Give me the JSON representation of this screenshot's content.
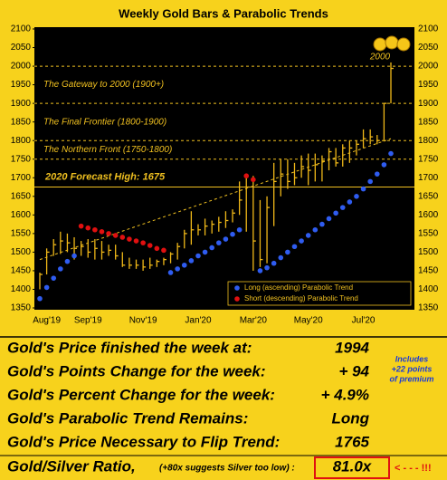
{
  "chart_data": {
    "type": "ohlc",
    "title": "Weekly Gold Bars & Parabolic Trends",
    "categories": [
      null,
      "Aug'19",
      null,
      null,
      null,
      null,
      null,
      "Sep'19",
      null,
      null,
      null,
      null,
      null,
      null,
      null,
      "Nov'19",
      null,
      null,
      null,
      null,
      null,
      null,
      null,
      "Jan'20",
      null,
      null,
      null,
      null,
      null,
      null,
      null,
      "Mar'20",
      null,
      null,
      null,
      null,
      null,
      null,
      null,
      "May'20",
      null,
      null,
      null,
      null,
      null,
      null,
      null,
      "Jul'20",
      null,
      null,
      null,
      null
    ],
    "bars": {
      "color": "#f0b818",
      "high": [
        1445,
        1510,
        1535,
        1555,
        1550,
        1540,
        1530,
        1535,
        1535,
        1530,
        1520,
        1520,
        1500,
        1485,
        1480,
        1480,
        1485,
        1480,
        1485,
        1500,
        1525,
        1560,
        1610,
        1575,
        1590,
        1585,
        1595,
        1610,
        1615,
        1690,
        1705,
        1705,
        1640,
        1650,
        1740,
        1750,
        1750,
        1740,
        1760,
        1765,
        1765,
        1760,
        1780,
        1780,
        1790,
        1800,
        1800,
        1830,
        1830,
        1815,
        1900,
        2010
      ],
      "low": [
        1400,
        1440,
        1490,
        1495,
        1500,
        1480,
        1490,
        1485,
        1480,
        1480,
        1490,
        1480,
        1460,
        1455,
        1455,
        1450,
        1455,
        1460,
        1465,
        1470,
        1480,
        1510,
        1520,
        1545,
        1545,
        1550,
        1555,
        1565,
        1580,
        1600,
        1555,
        1450,
        1460,
        1470,
        1570,
        1650,
        1670,
        1680,
        1700,
        1680,
        1690,
        1690,
        1720,
        1730,
        1730,
        1740,
        1760,
        1780,
        1790,
        1790,
        1800,
        1900
      ],
      "close": [
        1440,
        1500,
        1520,
        1530,
        1525,
        1510,
        1515,
        1500,
        1510,
        1500,
        1505,
        1490,
        1465,
        1465,
        1465,
        1460,
        1465,
        1475,
        1480,
        1495,
        1515,
        1550,
        1560,
        1560,
        1570,
        1575,
        1580,
        1585,
        1605,
        1640,
        1675,
        1530,
        1480,
        1620,
        1690,
        1710,
        1690,
        1700,
        1730,
        1720,
        1735,
        1745,
        1770,
        1740,
        1780,
        1780,
        1790,
        1805,
        1810,
        1800,
        1900,
        1994
      ]
    },
    "series": [
      {
        "name": "Long (ascending) Parabolic Trend",
        "color": "#2f5cf0",
        "values": [
          1375,
          1405,
          1430,
          1455,
          1475,
          1490,
          null,
          null,
          null,
          null,
          null,
          null,
          null,
          null,
          null,
          null,
          null,
          null,
          null,
          1445,
          1455,
          1465,
          1477,
          1490,
          1500,
          1512,
          1525,
          1535,
          1548,
          1560,
          null,
          null,
          1450,
          1458,
          1470,
          1485,
          1500,
          1515,
          1530,
          1545,
          1560,
          1575,
          1590,
          1605,
          1620,
          1635,
          1650,
          1670,
          1690,
          1710,
          1735,
          1765
        ]
      },
      {
        "name": "Short (descending) Parabolic Trend",
        "color": "#e01010",
        "values": [
          null,
          null,
          null,
          null,
          null,
          null,
          1570,
          1565,
          1560,
          1555,
          1550,
          1545,
          1540,
          1535,
          1530,
          1525,
          1518,
          1510,
          1505,
          null,
          null,
          null,
          null,
          null,
          null,
          null,
          null,
          null,
          null,
          null,
          1705,
          1695,
          null,
          null,
          null,
          null,
          null,
          null,
          null,
          null,
          null,
          null,
          null,
          null,
          null,
          null,
          null,
          null,
          null,
          null,
          null,
          null
        ]
      }
    ],
    "trend": [
      1480,
      1805
    ],
    "bands": [
      {
        "label": "The Gateway to 2000 (1900+)",
        "from": 1900,
        "to": 2000
      },
      {
        "label": "The Final Frontier (1800-1900)",
        "from": 1800,
        "to": 1900
      },
      {
        "label": "The Northern Front (1750-1800)",
        "from": 1750,
        "to": 1800
      }
    ],
    "forecast": {
      "label": "2020 Forecast High:  1675",
      "value": 1675
    },
    "peak_label": "2000",
    "ylim": [
      1350,
      2100
    ],
    "yticks": [
      1350,
      1400,
      1450,
      1500,
      1550,
      1600,
      1650,
      1700,
      1750,
      1800,
      1850,
      1900,
      1950,
      2000,
      2050,
      2100
    ]
  },
  "table": {
    "rows": [
      {
        "label": "Gold's Price finished the week at:",
        "value": "1994",
        "color": "#000000"
      },
      {
        "label": "Gold's Points Change for the week:",
        "value": "+ 94",
        "color": "#1a3ad8"
      },
      {
        "label": "Gold's Percent Change for the week:",
        "value": "+ 4.9%",
        "color": "#1a3ad8"
      },
      {
        "label": "Gold's Parabolic Trend Remains:",
        "value": "Long",
        "color": "#1a3ad8"
      },
      {
        "label": "Gold's Price Necessary to Flip Trend:",
        "value": "1765",
        "color": "#000000"
      }
    ],
    "note": [
      "Includes",
      "+22 points",
      "of premium"
    ],
    "ratio": {
      "label": "Gold/Silver Ratio,",
      "hint": "(+80x suggests Silver too low) :",
      "value": "81.0x",
      "alert": "< - - - !!!"
    }
  }
}
